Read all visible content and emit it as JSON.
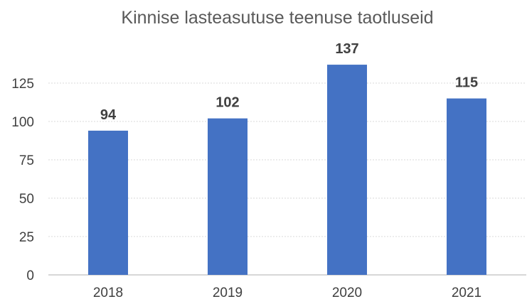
{
  "chart_data": {
    "type": "bar",
    "title": "Kinnise lasteasutuse teenuse taotluseid",
    "xlabel": "",
    "ylabel": "",
    "categories": [
      "2018",
      "2019",
      "2020",
      "2021"
    ],
    "values": [
      94,
      102,
      137,
      115
    ],
    "data_labels": [
      "94",
      "102",
      "137",
      "115"
    ],
    "ylim": [
      0,
      137
    ],
    "yticks": [
      0,
      25,
      50,
      75,
      100,
      125
    ],
    "ytick_labels": [
      "0",
      "25",
      "50",
      "75",
      "100",
      "125"
    ],
    "grid": true,
    "legend": "none",
    "colors": {
      "bar": "#4472C4",
      "grid": "#D9D9D9",
      "axis": "#BFBFBF",
      "title": "#595959",
      "text": "#404040"
    }
  }
}
